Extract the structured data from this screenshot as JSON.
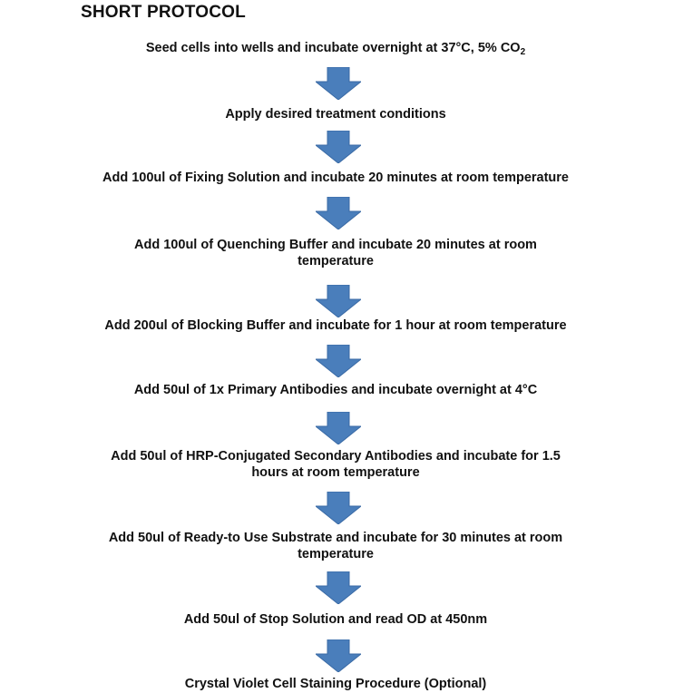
{
  "title": "SHORT PROTOCOL",
  "arrow_color": "#4a7ebb",
  "steps": [
    {
      "text": "Seed cells into wells and incubate overnight at 37°C, 5% CO",
      "sub": "2"
    },
    {
      "text": "Apply desired treatment conditions"
    },
    {
      "text": "Add 100ul of Fixing Solution and incubate 20 minutes at room temperature"
    },
    {
      "text": "Add 100ul of Quenching Buffer and incubate 20 minutes at room temperature"
    },
    {
      "text": "Add 200ul of Blocking Buffer and incubate for 1 hour at room temperature"
    },
    {
      "text": "Add 50ul of 1x Primary Antibodies and incubate overnight at 4°C"
    },
    {
      "text": "Add 50ul of HRP-Conjugated Secondary Antibodies and incubate for 1.5 hours at room temperature"
    },
    {
      "text": "Add 50ul of Ready-to Use Substrate and incubate for 30 minutes at room temperature"
    },
    {
      "text": "Add 50ul of Stop Solution and read OD at 450nm"
    },
    {
      "text": "Crystal Violet Cell Staining Procedure (Optional)"
    }
  ]
}
